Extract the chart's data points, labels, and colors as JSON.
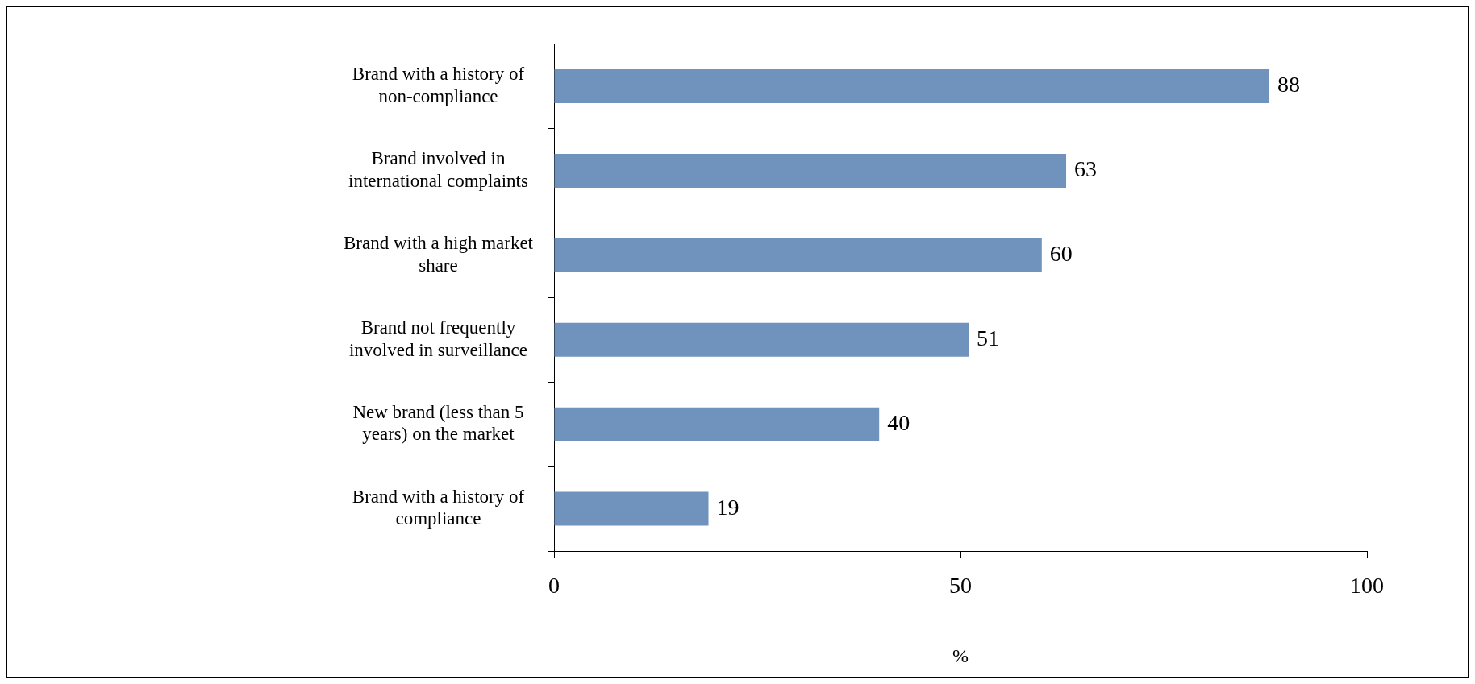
{
  "chart_data": {
    "type": "bar",
    "orientation": "horizontal",
    "xlabel": "%",
    "categories": [
      "Brand with a history of non-compliance",
      "Brand involved in international complaints",
      "Brand with a high market share",
      "Brand not frequently involved in surveillance",
      "New brand (less than 5 years) on the market",
      "Brand with a history of compliance"
    ],
    "values": [
      88,
      63,
      60,
      51,
      40,
      19
    ],
    "color": "#6f93bd",
    "xlim": [
      0,
      100
    ],
    "xticks": [
      0,
      50,
      100
    ],
    "grid": false,
    "legend": false,
    "data_labels": true
  }
}
